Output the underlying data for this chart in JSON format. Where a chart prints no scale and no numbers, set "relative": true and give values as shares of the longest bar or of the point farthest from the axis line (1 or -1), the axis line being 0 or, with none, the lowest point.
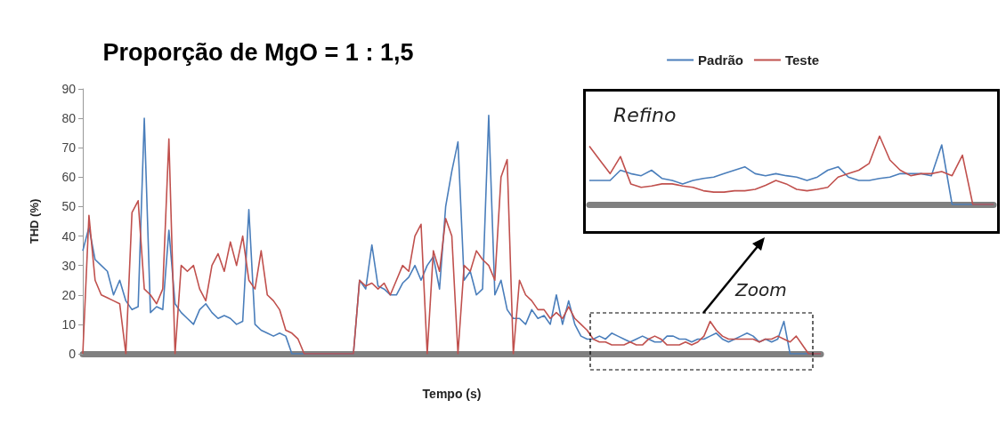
{
  "chart_data": [
    {
      "type": "line",
      "title": "Proporção de MgO = 1 : 1,5",
      "xlabel": "Tempo (s)",
      "ylabel": "THD (%)",
      "categories": [
        null,
        null,
        null,
        null,
        null,
        null,
        null,
        null,
        null,
        null,
        null,
        null,
        null,
        null,
        null,
        null,
        null,
        null,
        null,
        null,
        null,
        null,
        null,
        null,
        null,
        null,
        null,
        null,
        null,
        null,
        null,
        null,
        null,
        null,
        null,
        null,
        null,
        null,
        null,
        null,
        null,
        null,
        null,
        null,
        null,
        null,
        null,
        null,
        null,
        null,
        null,
        null,
        null,
        null,
        null,
        null,
        null,
        null,
        null,
        null,
        null,
        null,
        null,
        null,
        null,
        null,
        null,
        null,
        null,
        null,
        null,
        null,
        null,
        null,
        null,
        null,
        null,
        null,
        null,
        null,
        null,
        null,
        null,
        null,
        null,
        null,
        null,
        null,
        null,
        null,
        null,
        null,
        null,
        null,
        null,
        null,
        null,
        null,
        null,
        null,
        null,
        null,
        null,
        null,
        null,
        null,
        null,
        null,
        null,
        null,
        null,
        null,
        null,
        null,
        null,
        null,
        null,
        null,
        null,
        null,
        null
      ],
      "series": [
        {
          "name": "Padrão",
          "color": "#4a7ebb",
          "values": [
            35,
            43,
            32,
            30,
            28,
            20,
            25,
            18,
            15,
            16,
            80,
            14,
            16,
            15,
            42,
            17,
            14,
            12,
            10,
            15,
            17,
            14,
            12,
            13,
            12,
            10,
            11,
            49,
            10,
            8,
            7,
            6,
            7,
            6,
            0,
            0,
            0,
            0,
            0,
            0,
            0,
            0,
            0,
            0,
            0,
            25,
            22,
            37,
            23,
            22,
            20,
            20,
            24,
            26,
            30,
            25,
            30,
            33,
            22,
            50,
            62,
            72,
            25,
            28,
            20,
            22,
            81,
            20,
            25,
            15,
            12,
            12,
            10,
            15,
            12,
            13,
            10,
            20,
            10,
            18,
            10,
            6,
            5,
            5,
            6,
            5,
            7,
            6,
            5,
            4,
            5,
            6,
            5,
            4,
            4,
            6,
            6,
            5,
            5,
            4,
            5,
            5,
            6,
            7,
            5,
            4,
            5,
            6,
            7,
            6,
            4,
            5,
            4,
            5,
            11,
            0,
            0,
            0,
            0,
            0,
            0
          ]
        },
        {
          "name": "Teste",
          "color": "#c0504d",
          "values": [
            0,
            47,
            25,
            20,
            19,
            18,
            17,
            0,
            48,
            52,
            22,
            20,
            17,
            22,
            73,
            0,
            30,
            28,
            30,
            22,
            18,
            30,
            34,
            28,
            38,
            30,
            40,
            25,
            22,
            35,
            20,
            18,
            15,
            8,
            7,
            5,
            0,
            0,
            0,
            0,
            0,
            0,
            0,
            0,
            0,
            25,
            23,
            24,
            22,
            24,
            20,
            25,
            30,
            28,
            40,
            44,
            0,
            35,
            28,
            46,
            40,
            0,
            30,
            28,
            35,
            32,
            30,
            25,
            60,
            66,
            0,
            25,
            20,
            18,
            15,
            15,
            12,
            14,
            12,
            16,
            12,
            10,
            8,
            5,
            4,
            4,
            3,
            3,
            3,
            4,
            3,
            3,
            5,
            6,
            5,
            3,
            3,
            3,
            4,
            3,
            4,
            6,
            11,
            8,
            6,
            5,
            5,
            5,
            5,
            5,
            4,
            5,
            5,
            6,
            5,
            4,
            6,
            3,
            0,
            0,
            0
          ]
        }
      ],
      "ylim": [
        0,
        90
      ],
      "yticks": [
        0,
        10,
        20,
        30,
        40,
        50,
        60,
        70,
        80,
        90
      ],
      "legend": "top right",
      "annotations": [
        "Zoom"
      ]
    },
    {
      "type": "line",
      "title": "Refino",
      "relative": true,
      "categories": [
        null,
        null,
        null,
        null,
        null,
        null,
        null,
        null,
        null,
        null,
        null,
        null,
        null,
        null,
        null,
        null,
        null,
        null,
        null,
        null,
        null,
        null,
        null,
        null,
        null,
        null,
        null,
        null,
        null,
        null,
        null,
        null,
        null,
        null,
        null,
        null,
        null,
        null,
        null,
        null
      ],
      "series": [
        {
          "color": "#4a7ebb",
          "values": [
            0.35,
            0.35,
            0.35,
            0.5,
            0.45,
            0.42,
            0.5,
            0.38,
            0.35,
            0.3,
            0.35,
            0.38,
            0.4,
            0.45,
            0.5,
            0.55,
            0.45,
            0.42,
            0.45,
            0.42,
            0.4,
            0.35,
            0.4,
            0.5,
            0.55,
            0.4,
            0.35,
            0.35,
            0.38,
            0.4,
            0.45,
            0.45,
            0.45,
            0.42,
            0.87,
            0,
            0,
            0,
            0,
            0
          ]
        },
        {
          "color": "#c0504d",
          "values": [
            0.85,
            0.65,
            0.45,
            0.7,
            0.3,
            0.25,
            0.27,
            0.3,
            0.3,
            0.27,
            0.25,
            0.2,
            0.18,
            0.18,
            0.2,
            0.2,
            0.22,
            0.28,
            0.35,
            0.3,
            0.22,
            0.2,
            0.22,
            0.25,
            0.4,
            0.45,
            0.5,
            0.6,
            1.0,
            0.65,
            0.5,
            0.42,
            0.45,
            0.45,
            0.48,
            0.42,
            0.72,
            0,
            0,
            0
          ]
        }
      ]
    }
  ]
}
